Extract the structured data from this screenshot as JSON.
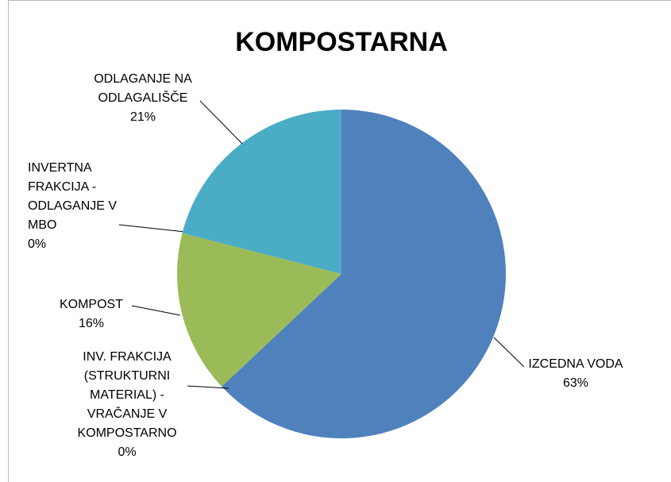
{
  "chart_data": {
    "type": "pie",
    "title": "KOMPOSTARNA",
    "categories": [
      "IZCEDNA VODA",
      "INV. FRAKCIJA (STRUKTURNI MATERIAL) - VRAČANJE V KOMPOSTARNO",
      "KOMPOST",
      "INVERTNA FRAKCIJA - ODLAGANJE V MBO",
      "ODLAGANJE NA ODLAGALIŠČE"
    ],
    "values": [
      63,
      0,
      16,
      0,
      21
    ],
    "value_labels": [
      "63%",
      "0%",
      "16%",
      "0%",
      "21%"
    ],
    "colors": [
      "#4f81bd",
      "#c0504d",
      "#9bbb59",
      "#8064a2",
      "#4bacc6"
    ]
  }
}
